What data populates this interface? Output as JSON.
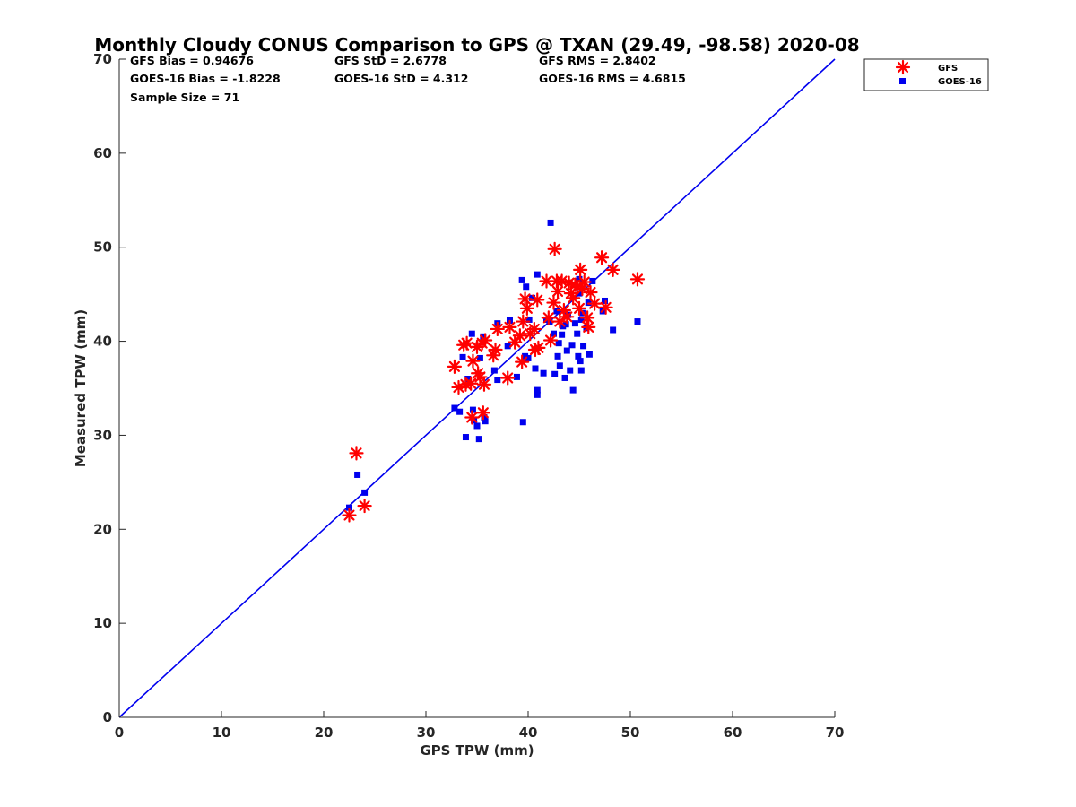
{
  "chart_data": {
    "type": "scatter",
    "title": "Monthly Cloudy CONUS Comparison to GPS @ TXAN (29.49, -98.58) 2020-08",
    "xlabel": "GPS TPW (mm)",
    "ylabel": "Measured TPW (mm)",
    "xlim": [
      0,
      70
    ],
    "ylim": [
      0,
      70
    ],
    "x_ticks": [
      "0",
      "10",
      "20",
      "30",
      "40",
      "50",
      "60",
      "70"
    ],
    "y_ticks": [
      "0",
      "10",
      "20",
      "30",
      "40",
      "50",
      "60",
      "70"
    ],
    "grid": false,
    "legend_position": "top-right",
    "reference_line": {
      "x": [
        0,
        70
      ],
      "y": [
        0,
        70
      ],
      "color": "#0000ee"
    },
    "stats": {
      "gfs_bias": "GFS Bias = 0.94676",
      "goes_bias": "GOES-16 Bias = -1.8228",
      "sample_size": "Sample Size = 71",
      "gfs_std": "GFS StD = 2.6778",
      "goes_std": "GOES-16 StD = 4.312",
      "gfs_rms": "GFS RMS = 2.8402",
      "goes_rms": "GOES-16 RMS = 4.6815"
    },
    "series": [
      {
        "name": "GFS",
        "marker": "asterisk",
        "color": "#ff0000",
        "points": [
          [
            22.5,
            21.5
          ],
          [
            23.2,
            28.1
          ],
          [
            24.0,
            22.5
          ],
          [
            32.8,
            37.3
          ],
          [
            33.2,
            35.1
          ],
          [
            33.7,
            39.6
          ],
          [
            33.9,
            35.4
          ],
          [
            34.0,
            39.8
          ],
          [
            34.4,
            35.5
          ],
          [
            34.5,
            31.9
          ],
          [
            34.6,
            37.9
          ],
          [
            35.0,
            39.4
          ],
          [
            35.1,
            36.6
          ],
          [
            35.3,
            36.2
          ],
          [
            35.5,
            39.8
          ],
          [
            35.6,
            32.4
          ],
          [
            35.7,
            35.4
          ],
          [
            35.8,
            40.1
          ],
          [
            36.6,
            38.5
          ],
          [
            36.8,
            39.1
          ],
          [
            37.0,
            41.3
          ],
          [
            38.0,
            36.1
          ],
          [
            38.2,
            41.5
          ],
          [
            38.7,
            39.9
          ],
          [
            39.2,
            40.6
          ],
          [
            39.4,
            37.8
          ],
          [
            39.5,
            42.1
          ],
          [
            39.7,
            44.5
          ],
          [
            39.9,
            43.5
          ],
          [
            40.2,
            40.8
          ],
          [
            40.6,
            41.3
          ],
          [
            40.7,
            39.1
          ],
          [
            40.9,
            44.4
          ],
          [
            41.0,
            39.3
          ],
          [
            41.8,
            46.4
          ],
          [
            42.0,
            42.5
          ],
          [
            42.2,
            40.1
          ],
          [
            42.5,
            44.1
          ],
          [
            42.6,
            49.8
          ],
          [
            42.8,
            46.4
          ],
          [
            42.9,
            45.3
          ],
          [
            43.1,
            42.1
          ],
          [
            43.3,
            46.4
          ],
          [
            43.5,
            43.3
          ],
          [
            43.8,
            42.6
          ],
          [
            44.0,
            46.2
          ],
          [
            44.2,
            45.1
          ],
          [
            44.4,
            44.6
          ],
          [
            44.6,
            46.0
          ],
          [
            44.8,
            45.8
          ],
          [
            45.0,
            43.5
          ],
          [
            45.1,
            47.6
          ],
          [
            45.3,
            45.6
          ],
          [
            45.5,
            46.3
          ],
          [
            45.8,
            42.5
          ],
          [
            45.9,
            41.5
          ],
          [
            46.1,
            45.2
          ],
          [
            46.5,
            44.0
          ],
          [
            47.2,
            48.9
          ],
          [
            47.6,
            43.6
          ],
          [
            48.3,
            47.6
          ],
          [
            50.7,
            46.6
          ]
        ]
      },
      {
        "name": "GOES-16",
        "marker": "square",
        "color": "#0000ee",
        "points": [
          [
            22.5,
            22.3
          ],
          [
            23.3,
            25.8
          ],
          [
            24.0,
            23.9
          ],
          [
            32.8,
            32.9
          ],
          [
            33.3,
            32.5
          ],
          [
            33.6,
            38.3
          ],
          [
            33.9,
            29.8
          ],
          [
            34.1,
            36.0
          ],
          [
            34.5,
            40.8
          ],
          [
            34.6,
            32.7
          ],
          [
            34.7,
            31.6
          ],
          [
            35.0,
            31.0
          ],
          [
            35.2,
            29.6
          ],
          [
            35.3,
            38.2
          ],
          [
            35.6,
            40.5
          ],
          [
            35.7,
            31.9
          ],
          [
            35.8,
            31.5
          ],
          [
            36.7,
            36.9
          ],
          [
            37.0,
            41.9
          ],
          [
            37.0,
            35.9
          ],
          [
            38.0,
            39.5
          ],
          [
            38.2,
            42.2
          ],
          [
            38.9,
            36.2
          ],
          [
            39.4,
            46.5
          ],
          [
            39.5,
            31.4
          ],
          [
            39.7,
            38.4
          ],
          [
            39.8,
            45.8
          ],
          [
            40.0,
            38.2
          ],
          [
            40.1,
            42.3
          ],
          [
            40.4,
            44.6
          ],
          [
            40.7,
            37.1
          ],
          [
            40.9,
            34.3
          ],
          [
            40.9,
            34.8
          ],
          [
            40.9,
            47.1
          ],
          [
            41.5,
            36.6
          ],
          [
            41.8,
            42.3
          ],
          [
            42.2,
            52.6
          ],
          [
            42.5,
            40.8
          ],
          [
            42.6,
            36.5
          ],
          [
            42.8,
            43.2
          ],
          [
            42.9,
            38.4
          ],
          [
            43.0,
            39.8
          ],
          [
            43.1,
            37.4
          ],
          [
            43.3,
            40.7
          ],
          [
            43.6,
            36.1
          ],
          [
            43.7,
            41.8
          ],
          [
            43.8,
            39.0
          ],
          [
            43.9,
            42.8
          ],
          [
            44.1,
            36.9
          ],
          [
            44.3,
            39.6
          ],
          [
            44.4,
            34.8
          ],
          [
            44.8,
            40.8
          ],
          [
            44.9,
            38.4
          ],
          [
            45.0,
            45.1
          ],
          [
            45.1,
            37.9
          ],
          [
            45.2,
            42.3
          ],
          [
            45.2,
            36.9
          ],
          [
            45.3,
            43.0
          ],
          [
            45.4,
            39.5
          ],
          [
            45.7,
            41.4
          ],
          [
            45.9,
            44.1
          ],
          [
            46.0,
            38.6
          ],
          [
            46.3,
            46.4
          ],
          [
            47.3,
            43.2
          ],
          [
            47.5,
            44.3
          ],
          [
            48.3,
            41.2
          ],
          [
            50.7,
            42.1
          ],
          [
            44.6,
            41.9
          ],
          [
            45.0,
            46.6
          ],
          [
            42.1,
            42.1
          ],
          [
            43.4,
            41.6
          ]
        ]
      }
    ]
  }
}
